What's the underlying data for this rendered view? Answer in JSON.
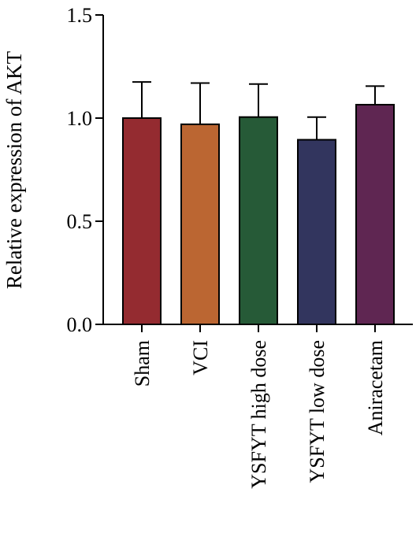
{
  "chart_data": {
    "type": "bar",
    "title": "",
    "xlabel": "",
    "ylabel": "Relative expression of AKT",
    "ylim": [
      0,
      1.5
    ],
    "yticks": [
      "0.0",
      "0.5",
      "1.0",
      "1.5"
    ],
    "categories": [
      "Sham",
      "VCI",
      "YSFYT high dose",
      "YSFYT low dose",
      "Aniracetam"
    ],
    "values": [
      1.0,
      0.97,
      1.005,
      0.895,
      1.065
    ],
    "error_upper": [
      0.175,
      0.2,
      0.16,
      0.11,
      0.09
    ],
    "colors": [
      "#942b30",
      "#bb6632",
      "#265a37",
      "#32355e",
      "#5f2652"
    ],
    "grid": false,
    "legend": "none"
  }
}
